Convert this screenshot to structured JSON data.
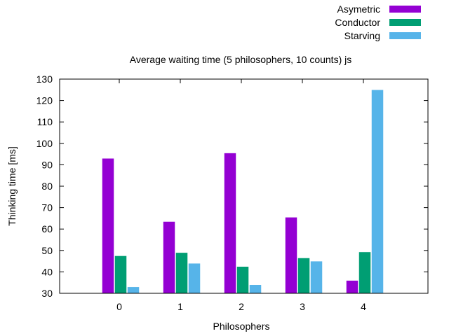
{
  "chart_data": {
    "type": "bar",
    "title": "Average waiting time (5 philosophers, 10 counts) js",
    "xlabel": "Philosophers",
    "ylabel": "Thinking time [ms]",
    "categories": [
      "0",
      "1",
      "2",
      "3",
      "4"
    ],
    "ylim": [
      30,
      130
    ],
    "yticks": [
      "30",
      "40",
      "50",
      "60",
      "70",
      "80",
      "90",
      "100",
      "110",
      "120",
      "130"
    ],
    "grid": false,
    "legend_position": "top-right",
    "series": [
      {
        "name": "Asymetric",
        "color": "#9400D3",
        "values": [
          93,
          63.5,
          95.5,
          65.5,
          36
        ]
      },
      {
        "name": "Conductor",
        "color": "#009E73",
        "values": [
          47.5,
          49,
          42.5,
          46.5,
          49.3
        ]
      },
      {
        "name": "Starving",
        "color": "#56B4E9",
        "values": [
          33,
          44,
          34,
          45,
          125
        ]
      }
    ]
  }
}
